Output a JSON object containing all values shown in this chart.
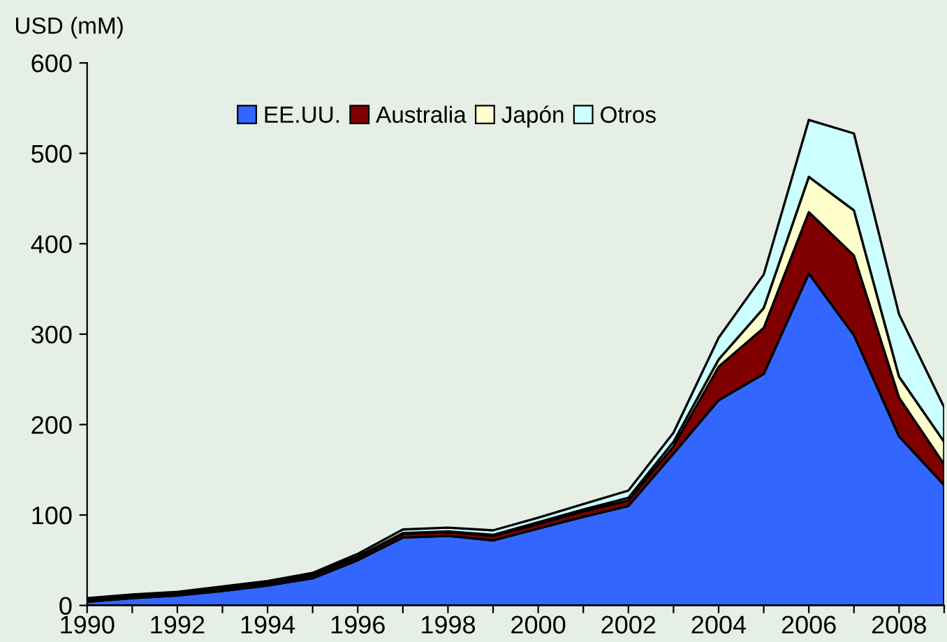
{
  "chart_data": {
    "type": "area",
    "stacked": true,
    "ylabel": "USD (mM)",
    "x": [
      1990,
      1991,
      1992,
      1993,
      1994,
      1995,
      1996,
      1997,
      1998,
      1999,
      2000,
      2001,
      2002,
      2003,
      2004,
      2005,
      2006,
      2007,
      2008,
      2009
    ],
    "series": [
      {
        "name": "EE.UU.",
        "color": "#3366ff",
        "values": [
          4,
          8,
          11,
          16,
          22,
          30,
          50,
          75,
          77,
          72,
          85,
          98,
          110,
          168,
          227,
          256,
          367,
          299,
          187,
          133
        ]
      },
      {
        "name": "Australia",
        "color": "#800000",
        "values": [
          2,
          2,
          2,
          2,
          2,
          3,
          3,
          4,
          4,
          5,
          5,
          6,
          6,
          8,
          37,
          51,
          68,
          88,
          43,
          23
        ]
      },
      {
        "name": "Japón",
        "color": "#ffffcc",
        "values": [
          1,
          1,
          1,
          1,
          1,
          1,
          1,
          1,
          1,
          1,
          2,
          2,
          3,
          5,
          8,
          22,
          39,
          50,
          23,
          25
        ]
      },
      {
        "name": "Otros",
        "color": "#ccffff",
        "values": [
          1,
          1,
          1,
          2,
          2,
          2,
          3,
          4,
          4,
          5,
          5,
          6,
          8,
          10,
          24,
          37,
          63,
          85,
          69,
          38
        ]
      }
    ],
    "xlim": [
      1990,
      2009
    ],
    "xticks": [
      1990,
      {
        "value": 1991,
        "label": null
      },
      1992,
      {
        "value": 1993,
        "label": null
      },
      1994,
      {
        "value": 1995,
        "label": null
      },
      1996,
      {
        "value": 1997,
        "label": null
      },
      1998,
      {
        "value": 1999,
        "label": null
      },
      2000,
      {
        "value": 2001,
        "label": null
      },
      2002,
      {
        "value": 2003,
        "label": null
      },
      2004,
      {
        "value": 2005,
        "label": null
      },
      2006,
      {
        "value": 2007,
        "label": null
      },
      2008,
      {
        "value": 2009,
        "label": null
      }
    ],
    "ylim": [
      0,
      600
    ],
    "yticks": [
      0,
      100,
      200,
      300,
      400,
      500,
      600
    ],
    "grid": false,
    "legend": "top"
  }
}
